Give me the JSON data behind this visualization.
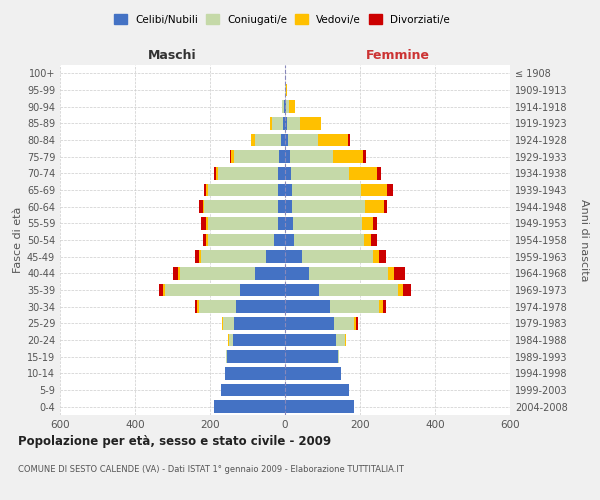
{
  "age_groups": [
    "0-4",
    "5-9",
    "10-14",
    "15-19",
    "20-24",
    "25-29",
    "30-34",
    "35-39",
    "40-44",
    "45-49",
    "50-54",
    "55-59",
    "60-64",
    "65-69",
    "70-74",
    "75-79",
    "80-84",
    "85-89",
    "90-94",
    "95-99",
    "100+"
  ],
  "birth_years": [
    "2004-2008",
    "1999-2003",
    "1994-1998",
    "1989-1993",
    "1984-1988",
    "1979-1983",
    "1974-1978",
    "1969-1973",
    "1964-1968",
    "1959-1963",
    "1954-1958",
    "1949-1953",
    "1944-1948",
    "1939-1943",
    "1934-1938",
    "1929-1933",
    "1924-1928",
    "1919-1923",
    "1914-1918",
    "1909-1913",
    "≤ 1908"
  ],
  "male": {
    "celibi": [
      190,
      170,
      160,
      155,
      140,
      135,
      130,
      120,
      80,
      50,
      30,
      20,
      20,
      20,
      20,
      15,
      10,
      5,
      2,
      0,
      0
    ],
    "coniugati": [
      0,
      0,
      0,
      2,
      10,
      30,
      100,
      200,
      200,
      175,
      175,
      185,
      195,
      185,
      160,
      120,
      70,
      30,
      5,
      1,
      0
    ],
    "vedovi": [
      0,
      0,
      0,
      0,
      2,
      3,
      5,
      5,
      5,
      5,
      5,
      5,
      5,
      5,
      5,
      10,
      10,
      5,
      2,
      0,
      0
    ],
    "divorziati": [
      0,
      0,
      0,
      0,
      0,
      0,
      5,
      10,
      15,
      10,
      10,
      15,
      10,
      5,
      5,
      2,
      0,
      0,
      0,
      0,
      0
    ]
  },
  "female": {
    "nubili": [
      185,
      170,
      150,
      140,
      135,
      130,
      120,
      90,
      65,
      45,
      25,
      20,
      18,
      18,
      15,
      12,
      8,
      5,
      3,
      1,
      0
    ],
    "coniugate": [
      0,
      0,
      0,
      5,
      25,
      55,
      130,
      210,
      210,
      190,
      185,
      185,
      195,
      185,
      155,
      115,
      80,
      35,
      8,
      2,
      0
    ],
    "vedove": [
      0,
      0,
      0,
      0,
      2,
      5,
      10,
      15,
      15,
      15,
      20,
      30,
      50,
      70,
      75,
      80,
      80,
      55,
      15,
      3,
      0
    ],
    "divorziate": [
      0,
      0,
      0,
      0,
      0,
      5,
      10,
      20,
      30,
      20,
      15,
      10,
      10,
      15,
      10,
      10,
      5,
      0,
      0,
      0,
      0
    ]
  },
  "colors": {
    "celibi": "#4472c4",
    "coniugati": "#c5d9a8",
    "vedovi": "#ffc000",
    "divorziati": "#cc0000"
  },
  "legend_labels": [
    "Celibi/Nubili",
    "Coniugati/e",
    "Vedovi/e",
    "Divorziati/e"
  ],
  "legend_colors": [
    "#4472c4",
    "#c5d9a8",
    "#ffc000",
    "#cc0000"
  ],
  "title": "Popolazione per età, sesso e stato civile - 2009",
  "subtitle": "COMUNE DI SESTO CALENDE (VA) - Dati ISTAT 1° gennaio 2009 - Elaborazione TUTTITALIA.IT",
  "xlabel_left": "Maschi",
  "xlabel_right": "Femmine",
  "ylabel_left": "Fasce di età",
  "ylabel_right": "Anni di nascita",
  "xlim": 600,
  "background_color": "#f0f0f0",
  "plot_background": "#ffffff",
  "grid_color": "#cccccc"
}
